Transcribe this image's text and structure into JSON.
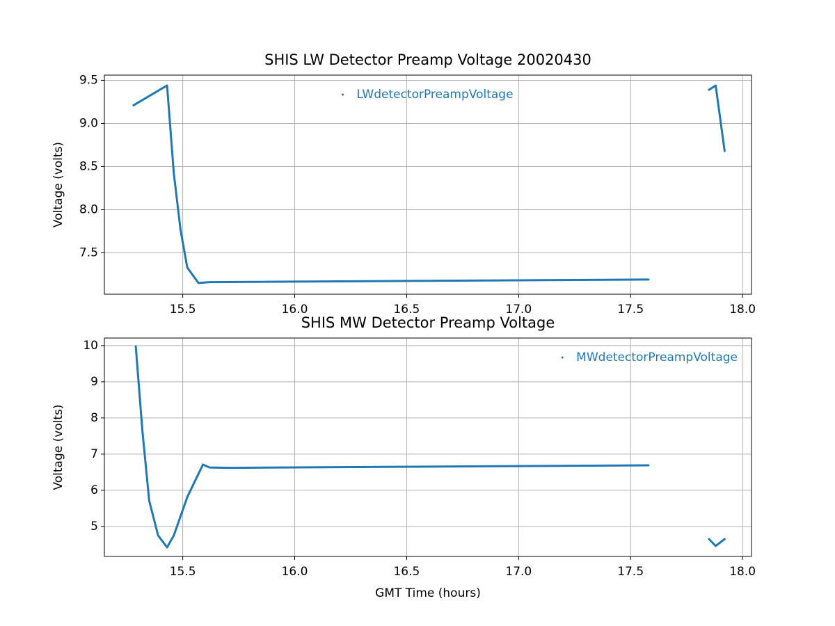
{
  "chart_data": [
    {
      "type": "line",
      "title": "SHIS LW Detector Preamp Voltage 20020430",
      "ylabel": "Voltage (volts)",
      "x": [
        15.28,
        15.43,
        15.46,
        15.49,
        15.52,
        15.57,
        15.62,
        17.58,
        null,
        17.85,
        17.88,
        17.92
      ],
      "series": [
        {
          "name": "LWdetectorPreampVoltage",
          "color": "#1f77b4",
          "values": [
            9.21,
            9.44,
            8.42,
            7.77,
            7.33,
            7.15,
            7.16,
            7.19,
            null,
            9.39,
            9.44,
            8.68
          ]
        }
      ],
      "xlim": [
        15.15,
        18.04
      ],
      "xticks": [
        15.5,
        {
          "value": 16,
          "label": "16.0"
        },
        16.5,
        {
          "value": 17,
          "label": "17.0"
        },
        17.5,
        {
          "value": 18,
          "label": "18.0"
        }
      ],
      "ylim": [
        7.02,
        9.56
      ],
      "yticks": [
        7.5,
        {
          "value": 8,
          "label": "8.0"
        },
        8.5,
        {
          "value": 9,
          "label": "9.0"
        },
        9.5
      ],
      "grid": true,
      "legend": "upper center"
    },
    {
      "type": "line",
      "title": "SHIS MW Detector Preamp Voltage",
      "xlabel": "GMT Time (hours)",
      "ylabel": "Voltage (volts)",
      "x": [
        15.29,
        15.32,
        15.35,
        15.39,
        15.43,
        15.46,
        15.52,
        15.59,
        15.62,
        15.71,
        17.58,
        null,
        17.85,
        17.88,
        17.92
      ],
      "series": [
        {
          "name": "MWdetectorPreampVoltage",
          "color": "#1f77b4",
          "values": [
            9.98,
            7.63,
            5.71,
            4.75,
            4.42,
            4.75,
            5.81,
            6.71,
            6.63,
            6.62,
            6.69,
            null,
            4.65,
            4.46,
            4.65
          ]
        }
      ],
      "xlim": [
        15.15,
        18.04
      ],
      "xticks": [
        15.5,
        {
          "value": 16,
          "label": "16.0"
        },
        16.5,
        {
          "value": 17,
          "label": "17.0"
        },
        17.5,
        {
          "value": 18,
          "label": "18.0"
        }
      ],
      "ylim": [
        4.17,
        10.21
      ],
      "yticks": [
        5,
        6,
        7,
        8,
        9,
        10
      ],
      "grid": true,
      "legend": "upper right"
    }
  ]
}
